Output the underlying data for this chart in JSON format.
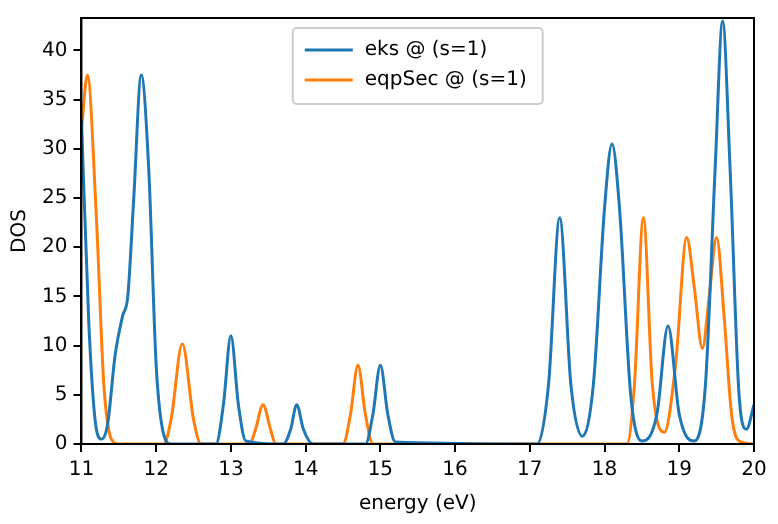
{
  "chart_data": {
    "type": "line",
    "xlabel": "energy (eV)",
    "ylabel": "DOS",
    "xlim": [
      11,
      20
    ],
    "xticks": [
      11,
      12,
      13,
      14,
      15,
      16,
      17,
      18,
      19,
      20
    ],
    "ylim": [
      0,
      43.3
    ],
    "yticks": [
      0,
      5,
      10,
      15,
      20,
      25,
      30,
      35,
      40
    ],
    "grid": false,
    "legend": "top",
    "marker": "none",
    "line_style": "solid",
    "series": [
      {
        "name": "eks @ (s=1)",
        "color": "#1f77b4",
        "x": [
          11.0,
          11.1,
          11.2,
          11.27,
          11.35,
          11.45,
          11.55,
          11.62,
          11.7,
          11.8,
          11.9,
          12.0,
          12.1,
          12.2,
          12.8,
          12.9,
          13.0,
          13.1,
          13.2,
          13.7,
          13.8,
          13.88,
          13.97,
          14.1,
          14.8,
          14.9,
          15.0,
          15.1,
          15.2,
          17.1,
          17.25,
          17.4,
          17.55,
          17.7,
          17.85,
          18.0,
          18.1,
          18.2,
          18.35,
          18.5,
          18.7,
          18.85,
          19.0,
          19.2,
          19.35,
          19.48,
          19.58,
          19.68,
          19.8,
          19.9,
          20.0
        ],
        "values": [
          33,
          12,
          1.5,
          0.5,
          2,
          9,
          13,
          15,
          25,
          37.5,
          28,
          8,
          1,
          0,
          0,
          4,
          11,
          4,
          0.3,
          0,
          1.5,
          4,
          1.5,
          0,
          0,
          3,
          8,
          3,
          0.2,
          0,
          6,
          23,
          6,
          0.8,
          6,
          24,
          30.5,
          24,
          5,
          0.3,
          3,
          12,
          3,
          0.3,
          6,
          28,
          43,
          28,
          5,
          1.5,
          4
        ]
      },
      {
        "name": "eqpSec @ (s=1)",
        "color": "#ff7f0e",
        "x": [
          11.0,
          11.08,
          11.2,
          11.3,
          11.4,
          11.5,
          12.1,
          12.2,
          12.35,
          12.5,
          12.6,
          13.25,
          13.33,
          13.43,
          13.53,
          13.6,
          14.5,
          14.6,
          14.7,
          14.8,
          14.9,
          18.3,
          18.4,
          18.52,
          18.64,
          18.8,
          18.95,
          19.1,
          19.2,
          19.31,
          19.4,
          19.5,
          19.6,
          19.7,
          19.8,
          20.0
        ],
        "values": [
          32,
          37.5,
          23,
          6,
          0.5,
          0,
          0,
          2.5,
          10.2,
          2.5,
          0,
          0,
          1.5,
          4,
          1.5,
          0,
          0,
          3,
          8,
          3,
          0,
          0,
          6,
          23,
          6,
          1.2,
          8,
          21,
          16,
          9.7,
          15,
          21,
          13,
          3,
          0.3,
          0
        ]
      }
    ]
  }
}
